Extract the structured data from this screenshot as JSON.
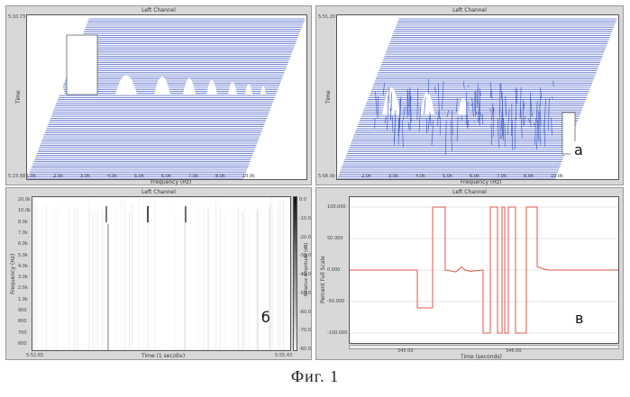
{
  "panels": {
    "top_left": {
      "title": "Left Channel",
      "x_label": "Frequency (Hz)",
      "y_label": "Time",
      "y_top": "5:10.73",
      "y_bottom": "5:23.58",
      "x_ticks": [
        "1.0k",
        "2.0k",
        "3.0k",
        "4.0k",
        "5.0k",
        "6.0k",
        "7.0k",
        "8.0k",
        "10.0k"
      ]
    },
    "top_right": {
      "title": "Left Channel",
      "x_label": "Frequency (Hz)",
      "y_label": "Time",
      "y_top": "5:51.20",
      "y_bottom": "5:56.0k",
      "x_ticks": [
        "2.0k",
        "3.0k",
        "4.0k",
        "5.0k",
        "6.0k",
        "7.0k",
        "8.0k",
        "10.0k"
      ],
      "letter": "а"
    },
    "bottom_left": {
      "title": "Left Channel",
      "x_label": "Time (1 sec/div)",
      "y_label": "Frequency (Hz)",
      "colorbar_label": "Relative Amplitude (dB)",
      "x_start": "5:52.65",
      "x_end": "5:55.43",
      "y_ticks": [
        "20.0k",
        "10.0k",
        "8.0k",
        "7.0k",
        "6.0k",
        "5.0k",
        "4.0k",
        "3.0k",
        "2.0k",
        "1.0k",
        "900",
        "800",
        "700",
        "600"
      ],
      "colorbar_ticks": [
        "0.0",
        "-10.0",
        "-20.0",
        "-30.0",
        "-40.0",
        "-50.0",
        "-60.0",
        "-70.0",
        "-80.0"
      ],
      "letter": "б"
    },
    "bottom_right": {
      "title": "Left Channel",
      "x_label": "Time (seconds)",
      "y_label": "Percent Full Scale",
      "y_ticks": [
        "100.000",
        "50.000",
        "0.000",
        "-50.000",
        "-100.000"
      ],
      "x_ticks": [
        "345.00",
        "346.00"
      ],
      "letter": "в",
      "line_color": "#e0554a"
    }
  },
  "caption": "Фиг.  1",
  "colors": {
    "blue": "#4a63c8",
    "red": "#e0554a"
  }
}
